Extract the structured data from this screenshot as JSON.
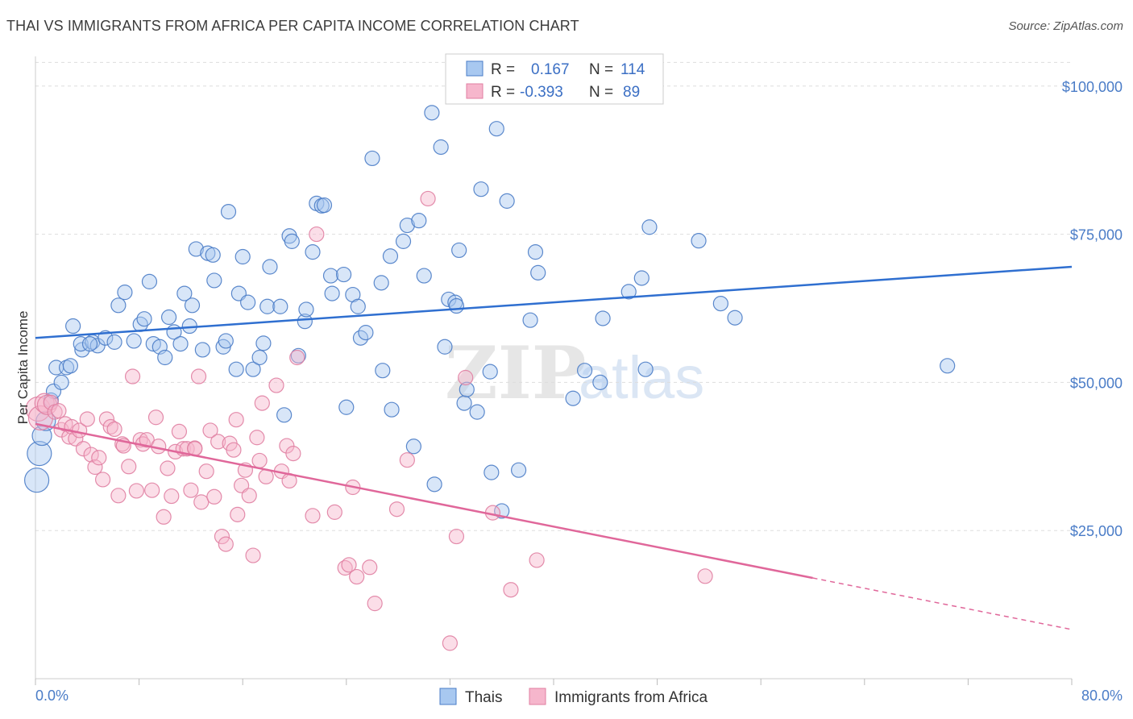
{
  "title": "THAI VS IMMIGRANTS FROM AFRICA PER CAPITA INCOME CORRELATION CHART",
  "source": "Source: ZipAtlas.com",
  "watermark": {
    "zip": "ZIP",
    "atlas": "atlas"
  },
  "colors": {
    "thai_fill": "#a8c8f0",
    "thai_stroke": "#4a7cc7",
    "thai_line": "#2f6fd0",
    "africa_fill": "#f6b6cc",
    "africa_stroke": "#e07fa2",
    "africa_line": "#e0679a",
    "tick_text": "#4a7cc7",
    "grid": "#dddddd"
  },
  "legend": {
    "rows": [
      {
        "r_label": "R =",
        "r_value": "0.167",
        "n_label": "N =",
        "n_value": "114"
      },
      {
        "r_label": "R =",
        "r_value": "-0.393",
        "n_label": "N =",
        "n_value": "89"
      }
    ]
  },
  "chart_data": {
    "type": "scatter",
    "title": "THAI VS IMMIGRANTS FROM AFRICA PER CAPITA INCOME CORRELATION CHART",
    "xlabel": "",
    "ylabel": "Per Capita Income",
    "xlim": [
      0,
      80
    ],
    "ylim": [
      0,
      105000
    ],
    "x_tick_labels": [
      "0.0%",
      "80.0%"
    ],
    "y_ticks": [
      25000,
      50000,
      75000,
      100000
    ],
    "y_tick_labels": [
      "$25,000",
      "$50,000",
      "$75,000",
      "$100,000"
    ],
    "grid": true,
    "legend_position": "top-center",
    "series": [
      {
        "name": "Thais",
        "r": 0.167,
        "n": 114,
        "trend": {
          "x0": 0,
          "y0": 57500,
          "x1": 80,
          "y1": 69500
        },
        "points": [
          [
            0.1,
            33500
          ],
          [
            0.3,
            38000
          ],
          [
            0.5,
            41000
          ],
          [
            0.8,
            43500
          ],
          [
            1.2,
            47000
          ],
          [
            1.4,
            48500
          ],
          [
            1.6,
            52500
          ],
          [
            2.0,
            50000
          ],
          [
            2.4,
            52500
          ],
          [
            2.9,
            59500
          ],
          [
            3.6,
            55500
          ],
          [
            3.5,
            56500
          ],
          [
            4.4,
            56800
          ],
          [
            4.8,
            56200
          ],
          [
            5.4,
            57500
          ],
          [
            6.1,
            56800
          ],
          [
            6.4,
            63000
          ],
          [
            6.9,
            65200
          ],
          [
            7.6,
            57000
          ],
          [
            8.1,
            59800
          ],
          [
            8.4,
            60700
          ],
          [
            8.8,
            67000
          ],
          [
            9.1,
            56500
          ],
          [
            9.6,
            56000
          ],
          [
            10.0,
            54200
          ],
          [
            10.3,
            61000
          ],
          [
            10.7,
            58500
          ],
          [
            11.2,
            56500
          ],
          [
            11.5,
            65000
          ],
          [
            11.9,
            59500
          ],
          [
            12.1,
            63000
          ],
          [
            12.4,
            72500
          ],
          [
            12.9,
            55500
          ],
          [
            13.3,
            71800
          ],
          [
            13.7,
            71500
          ],
          [
            13.8,
            67200
          ],
          [
            14.5,
            56000
          ],
          [
            14.7,
            57000
          ],
          [
            14.9,
            78800
          ],
          [
            15.5,
            52200
          ],
          [
            15.7,
            65000
          ],
          [
            16.0,
            71200
          ],
          [
            16.4,
            63500
          ],
          [
            16.8,
            52200
          ],
          [
            17.3,
            54200
          ],
          [
            17.6,
            56600
          ],
          [
            17.9,
            62800
          ],
          [
            18.1,
            69500
          ],
          [
            18.9,
            62800
          ],
          [
            19.2,
            44500
          ],
          [
            19.6,
            74700
          ],
          [
            19.8,
            73800
          ],
          [
            20.3,
            54500
          ],
          [
            20.8,
            60300
          ],
          [
            20.9,
            62300
          ],
          [
            21.4,
            72000
          ],
          [
            21.7,
            80200
          ],
          [
            22.1,
            79800
          ],
          [
            22.3,
            79900
          ],
          [
            22.8,
            68000
          ],
          [
            22.9,
            65000
          ],
          [
            23.8,
            68200
          ],
          [
            24.0,
            45800
          ],
          [
            24.5,
            64800
          ],
          [
            24.9,
            62800
          ],
          [
            25.1,
            57500
          ],
          [
            25.5,
            58400
          ],
          [
            26.0,
            87800
          ],
          [
            26.7,
            66800
          ],
          [
            26.8,
            52000
          ],
          [
            27.4,
            71300
          ],
          [
            27.5,
            45400
          ],
          [
            28.4,
            73800
          ],
          [
            28.7,
            76500
          ],
          [
            29.2,
            39200
          ],
          [
            29.6,
            77300
          ],
          [
            30.0,
            68000
          ],
          [
            30.6,
            95500
          ],
          [
            30.8,
            32800
          ],
          [
            31.3,
            89700
          ],
          [
            31.6,
            56000
          ],
          [
            31.9,
            64000
          ],
          [
            32.4,
            63500
          ],
          [
            32.5,
            62900
          ],
          [
            32.7,
            72300
          ],
          [
            33.1,
            46500
          ],
          [
            33.3,
            48800
          ],
          [
            34.1,
            45000
          ],
          [
            34.4,
            82600
          ],
          [
            35.1,
            51800
          ],
          [
            35.2,
            34800
          ],
          [
            35.6,
            92800
          ],
          [
            36.0,
            28300
          ],
          [
            36.4,
            80600
          ],
          [
            37.3,
            35200
          ],
          [
            38.2,
            60500
          ],
          [
            38.6,
            72000
          ],
          [
            38.8,
            68500
          ],
          [
            41.5,
            47300
          ],
          [
            42.4,
            52000
          ],
          [
            43.6,
            50000
          ],
          [
            43.8,
            60800
          ],
          [
            45.8,
            65300
          ],
          [
            46.8,
            67600
          ],
          [
            47.1,
            52200
          ],
          [
            47.4,
            76200
          ],
          [
            51.2,
            73900
          ],
          [
            52.9,
            63300
          ],
          [
            54.0,
            60900
          ],
          [
            70.4,
            52800
          ],
          [
            4.2,
            56500
          ],
          [
            2.7,
            52800
          ]
        ]
      },
      {
        "name": "Immigrants from Africa",
        "r": -0.393,
        "n": 89,
        "trend": {
          "x0": 0,
          "y0": 43000,
          "x1": 60,
          "y1": 17000
        },
        "trend_dashed": {
          "x0": 60,
          "y0": 17000,
          "x1": 80,
          "y1": 8300
        },
        "points": [
          [
            0.2,
            45500
          ],
          [
            0.4,
            44000
          ],
          [
            0.7,
            46500
          ],
          [
            0.9,
            46200
          ],
          [
            1.2,
            46600
          ],
          [
            1.5,
            45000
          ],
          [
            1.8,
            45200
          ],
          [
            2.0,
            42000
          ],
          [
            2.3,
            43000
          ],
          [
            2.6,
            40800
          ],
          [
            2.8,
            42500
          ],
          [
            3.1,
            40500
          ],
          [
            3.4,
            41900
          ],
          [
            3.7,
            38800
          ],
          [
            4.0,
            43800
          ],
          [
            4.3,
            37800
          ],
          [
            4.6,
            35700
          ],
          [
            4.9,
            37300
          ],
          [
            5.2,
            33600
          ],
          [
            5.5,
            43800
          ],
          [
            5.8,
            42500
          ],
          [
            6.1,
            42100
          ],
          [
            6.4,
            30900
          ],
          [
            6.7,
            39600
          ],
          [
            6.8,
            39300
          ],
          [
            7.2,
            35800
          ],
          [
            7.5,
            51000
          ],
          [
            7.8,
            31700
          ],
          [
            8.1,
            40300
          ],
          [
            8.3,
            39600
          ],
          [
            8.6,
            40300
          ],
          [
            9.0,
            31800
          ],
          [
            9.3,
            44100
          ],
          [
            9.5,
            39200
          ],
          [
            9.9,
            27300
          ],
          [
            10.2,
            35500
          ],
          [
            10.5,
            30800
          ],
          [
            10.8,
            38300
          ],
          [
            11.1,
            41700
          ],
          [
            11.4,
            38800
          ],
          [
            11.7,
            38800
          ],
          [
            12.0,
            31800
          ],
          [
            12.3,
            38900
          ],
          [
            12.6,
            51000
          ],
          [
            12.8,
            29800
          ],
          [
            13.2,
            35000
          ],
          [
            13.5,
            41900
          ],
          [
            13.8,
            30700
          ],
          [
            14.1,
            40000
          ],
          [
            14.4,
            24000
          ],
          [
            14.7,
            22700
          ],
          [
            15.0,
            39700
          ],
          [
            15.3,
            38600
          ],
          [
            15.5,
            43700
          ],
          [
            15.6,
            27700
          ],
          [
            15.9,
            32600
          ],
          [
            16.2,
            35200
          ],
          [
            16.5,
            30900
          ],
          [
            16.8,
            20800
          ],
          [
            17.1,
            40700
          ],
          [
            17.3,
            36800
          ],
          [
            17.5,
            46500
          ],
          [
            17.8,
            34100
          ],
          [
            18.6,
            49500
          ],
          [
            19.0,
            35000
          ],
          [
            19.4,
            39300
          ],
          [
            19.6,
            33400
          ],
          [
            19.9,
            38000
          ],
          [
            20.2,
            54200
          ],
          [
            21.4,
            27500
          ],
          [
            21.7,
            75000
          ],
          [
            23.1,
            28100
          ],
          [
            23.9,
            18700
          ],
          [
            24.2,
            19200
          ],
          [
            24.5,
            32300
          ],
          [
            24.8,
            17200
          ],
          [
            25.8,
            18800
          ],
          [
            26.2,
            12700
          ],
          [
            27.9,
            28600
          ],
          [
            28.7,
            36900
          ],
          [
            30.3,
            81000
          ],
          [
            32.0,
            6000
          ],
          [
            32.5,
            24000
          ],
          [
            33.2,
            50800
          ],
          [
            35.3,
            28000
          ],
          [
            36.7,
            15000
          ],
          [
            38.7,
            20000
          ],
          [
            51.7,
            17300
          ],
          [
            12.3,
            38800
          ]
        ]
      }
    ]
  }
}
